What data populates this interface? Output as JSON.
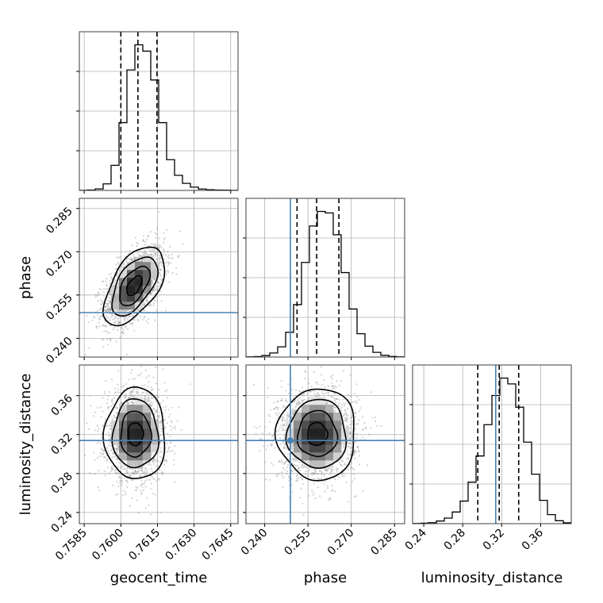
{
  "chart_data": {
    "type": "corner",
    "params": [
      {
        "name": "geocent_time",
        "label": "geocent_time",
        "range": [
          0.7583,
          0.7648
        ],
        "ticks": [
          0.7585,
          0.76,
          0.7615,
          0.763,
          0.7645
        ],
        "tick_labels": [
          "0.7585",
          "0.7600",
          "0.7615",
          "0.7630",
          "0.7645"
        ],
        "quantiles": [
          0.76,
          0.7607,
          0.76148
        ],
        "injection": null,
        "hist": [
          1,
          3,
          12,
          52,
          200,
          540,
          960,
          1160,
          1110,
          880,
          540,
          245,
          120,
          56,
          26,
          11,
          5,
          3,
          2,
          1
        ]
      },
      {
        "name": "phase",
        "label": "phase",
        "range": [
          0.2335,
          0.2885
        ],
        "ticks": [
          0.24,
          0.255,
          0.27,
          0.285
        ],
        "tick_labels": [
          "0.240",
          "0.255",
          "0.270",
          "0.285"
        ],
        "quantiles": [
          0.2512,
          0.258,
          0.2657
        ],
        "injection": 0.2489,
        "hist": [
          1,
          3,
          10,
          28,
          70,
          170,
          360,
          650,
          900,
          1000,
          990,
          840,
          580,
          330,
          160,
          75,
          32,
          12,
          4,
          1
        ]
      },
      {
        "name": "luminosity_distance",
        "label": "luminosity_distance",
        "range": [
          0.2285,
          0.3915
        ],
        "ticks": [
          0.24,
          0.28,
          0.32,
          0.36
        ],
        "tick_labels": [
          "0.24",
          "0.28",
          "0.32",
          "0.36"
        ],
        "quantiles": [
          0.2955,
          0.3175,
          0.3375
        ],
        "injection": 0.3139,
        "hist": [
          1,
          3,
          7,
          18,
          38,
          80,
          155,
          285,
          465,
          680,
          880,
          1000,
          960,
          800,
          560,
          340,
          160,
          62,
          20,
          6
        ]
      }
    ],
    "pairs": [
      {
        "x": "geocent_time",
        "y": "phase",
        "center": [
          0.76055,
          0.2582
        ],
        "sd": [
          0.00062,
          0.0068
        ],
        "rho": 0.55
      },
      {
        "x": "geocent_time",
        "y": "luminosity_distance",
        "center": [
          0.7606,
          0.3205
        ],
        "sd": [
          0.00062,
          0.0235
        ],
        "rho": 0.0
      },
      {
        "x": "phase",
        "y": "luminosity_distance",
        "center": [
          0.2582,
          0.3205
        ],
        "sd": [
          0.0068,
          0.0235
        ],
        "rho": 0.0
      }
    ],
    "xlabels": [
      "geocent_time",
      "phase",
      "luminosity_distance"
    ],
    "ylabels": [
      "",
      "phase",
      "luminosity_distance"
    ],
    "grid": true,
    "colors": {
      "hist": "#000000",
      "injection": "#4682b4",
      "scatter": "#808080"
    }
  }
}
